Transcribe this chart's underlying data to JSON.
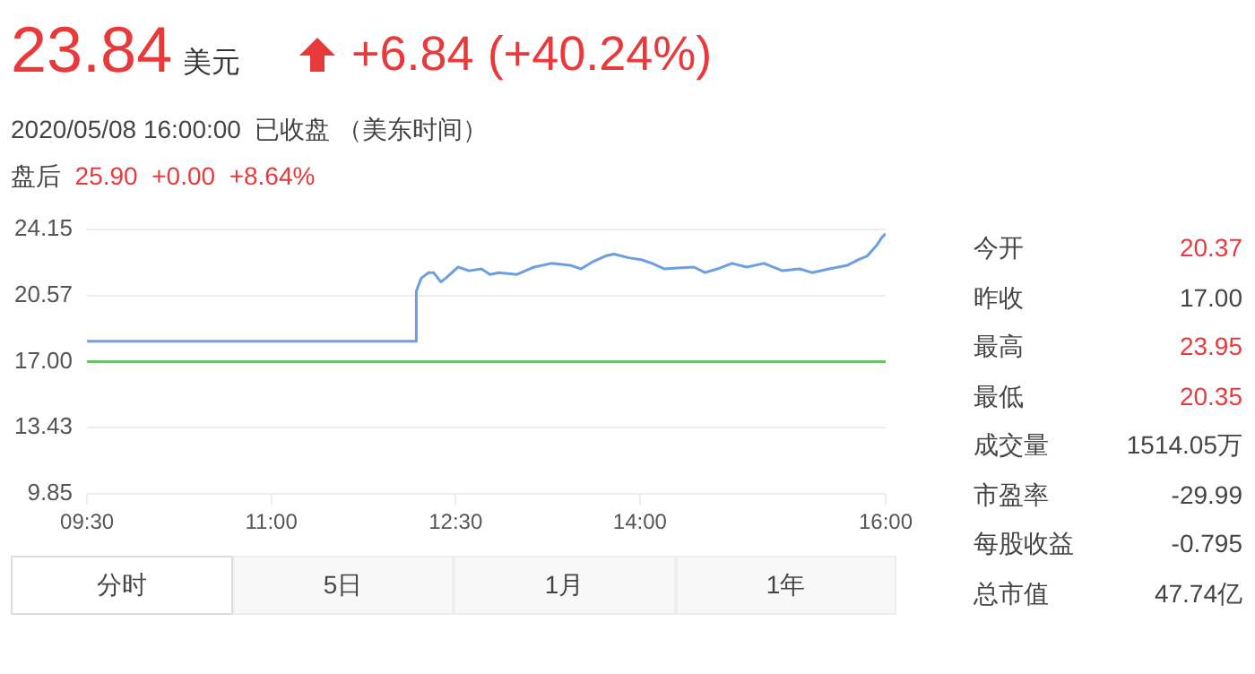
{
  "chart_data": {
    "type": "line",
    "title": "23.84美元",
    "annotations": [
      "+6.84 (+40.24%)",
      "2020/05/08 16:00:00  已收盘 （美东时间）",
      "盘后  25.90  +0.00  +8.64%",
      "今开 20.37",
      "昨收 17.00",
      "最高 23.95",
      "最低 20.35",
      "成交量 1514.05万",
      "市盈率 -29.99",
      "每股收益 -0.795",
      "总市值 47.74亿",
      "分时",
      "5日",
      "1月",
      "1年"
    ],
    "series": [
      {
        "color": "#6c9ee3",
        "x": [
          9.5,
          12.18,
          12.18,
          12.22,
          12.28,
          12.32,
          12.38,
          12.42,
          12.52,
          12.61,
          12.71,
          12.78,
          12.85,
          13.0,
          13.14,
          13.28,
          13.43,
          13.52,
          13.62,
          13.72,
          13.79,
          13.91,
          14.01,
          14.1,
          14.2,
          14.44,
          14.53,
          14.63,
          14.75,
          14.87,
          15.01,
          15.16,
          15.3,
          15.4,
          15.54,
          15.69,
          15.78,
          15.85,
          15.93,
          15.97,
          16.0
        ],
        "values": [
          18.1,
          18.1,
          20.8,
          21.5,
          21.8,
          21.8,
          21.3,
          21.5,
          22.1,
          21.9,
          22.0,
          21.7,
          21.8,
          21.7,
          22.1,
          22.3,
          22.2,
          22.0,
          22.4,
          22.7,
          22.8,
          22.6,
          22.5,
          22.3,
          22.0,
          22.1,
          21.8,
          22.0,
          22.3,
          22.1,
          22.3,
          21.9,
          22.0,
          21.8,
          22.0,
          22.2,
          22.5,
          22.7,
          23.3,
          23.7,
          23.9
        ]
      }
    ],
    "xlim": [
      9.5,
      16
    ],
    "xticks": [
      {
        "value": 9.5,
        "label": "09:30"
      },
      {
        "value": 11,
        "label": "11:00"
      },
      {
        "value": 12.5,
        "label": "12:30"
      },
      {
        "value": 14,
        "label": "14:00"
      },
      {
        "value": 16,
        "label": "16:00"
      }
    ],
    "ylim": [
      9.85,
      24.15
    ],
    "yticks": [
      {
        "value": 9.85,
        "label": "9.85"
      },
      {
        "value": 13.43,
        "label": "13.43"
      },
      {
        "value": 17,
        "label": "17.00"
      },
      {
        "value": 20.57,
        "label": "20.57"
      },
      {
        "value": 24.15,
        "label": "24.15"
      }
    ],
    "ref_lines": [
      {
        "axis": "y",
        "value": 17,
        "color": "#6cc06a"
      }
    ],
    "grid": "y",
    "legend": false
  }
}
